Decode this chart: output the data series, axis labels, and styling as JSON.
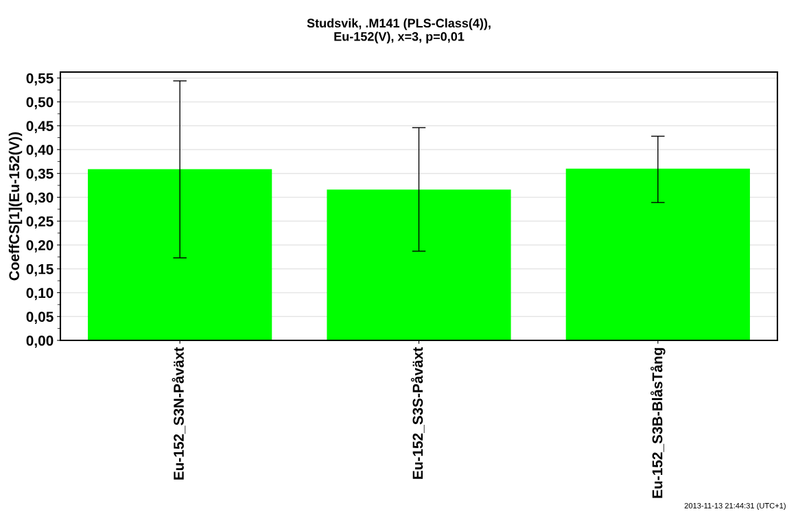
{
  "chart_data": {
    "type": "bar",
    "title": "Studsvik, .M141 (PLS-Class(4)),\nEu-152(V), x=3, p=0,01",
    "ylabel": "CoeffCS[1](Eu-152(V))",
    "categories": [
      "Eu-152_S3N-Påväxt",
      "Eu-152_S3S-Påväxt",
      "Eu-152_S3B-BlåsTång"
    ],
    "values": [
      0.359,
      0.316,
      0.36
    ],
    "errors": [
      [
        0.173,
        0.544
      ],
      [
        0.187,
        0.446
      ],
      [
        0.289,
        0.428
      ]
    ],
    "color": "#00ff00",
    "ylim": [
      0,
      0.5625
    ],
    "yticks": [
      {
        "value": 0,
        "label": "0,00"
      },
      {
        "value": 0.05,
        "label": "0,05"
      },
      {
        "value": 0.1,
        "label": "0,10"
      },
      {
        "value": 0.15,
        "label": "0,15"
      },
      {
        "value": 0.2,
        "label": "0,20"
      },
      {
        "value": 0.25,
        "label": "0,25"
      },
      {
        "value": 0.3,
        "label": "0,30"
      },
      {
        "value": 0.35,
        "label": "0,35"
      },
      {
        "value": 0.4,
        "label": "0,40"
      },
      {
        "value": 0.45,
        "label": "0,45"
      },
      {
        "value": 0.5,
        "label": "0,50"
      },
      {
        "value": 0.55,
        "label": "0,55"
      }
    ],
    "grid": "y",
    "annotations": [
      "2013-11-13 21:44:31 (UTC+1)"
    ]
  }
}
